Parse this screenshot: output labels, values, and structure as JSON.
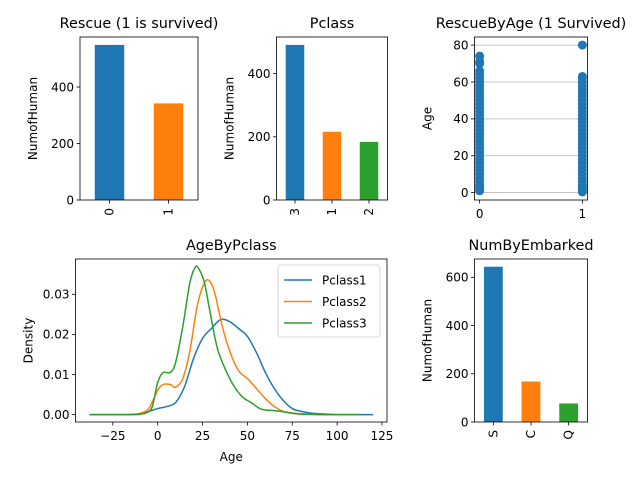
{
  "chart_data": [
    {
      "id": "rescue",
      "type": "bar",
      "title": "Rescue (1 is survived)",
      "xlabel": "",
      "ylabel": "NumofHuman",
      "categories": [
        "0",
        "1"
      ],
      "values": [
        549,
        342
      ],
      "colors": [
        "#1f77b4",
        "#ff7f0e"
      ],
      "ylim": [
        0,
        577
      ],
      "yticks": [
        0,
        200,
        400
      ],
      "tick_rotation": "vertical"
    },
    {
      "id": "pclass",
      "type": "bar",
      "title": "Pclass",
      "xlabel": "",
      "ylabel": "NumofHuman",
      "categories": [
        "3",
        "1",
        "2"
      ],
      "values": [
        491,
        216,
        184
      ],
      "colors": [
        "#1f77b4",
        "#ff7f0e",
        "#2ca02c"
      ],
      "ylim": [
        0,
        516
      ],
      "yticks": [
        0,
        200,
        400
      ],
      "tick_rotation": "vertical"
    },
    {
      "id": "rescuebyage",
      "type": "scatter",
      "title": "RescueByAge (1 Survived)",
      "xlabel": "",
      "ylabel": "Age",
      "xlim": [
        -0.05,
        1.05
      ],
      "ylim": [
        -4,
        84.4
      ],
      "xticks": [
        0,
        1
      ],
      "yticks": [
        0,
        20,
        40,
        60,
        80
      ],
      "grid": "y",
      "color": "#1f77b4",
      "series": [
        {
          "x": 0,
          "y": [
            1,
            2,
            3,
            4,
            6,
            8,
            10,
            12,
            14,
            16,
            18,
            20,
            22,
            24,
            26,
            28,
            30,
            32,
            34,
            36,
            38,
            40,
            42,
            44,
            46,
            48,
            50,
            52,
            54,
            56,
            58,
            60,
            62,
            64,
            66,
            70,
            71,
            74
          ]
        },
        {
          "x": 1,
          "y": [
            0.4,
            1,
            2,
            3,
            4,
            6,
            8,
            10,
            12,
            14,
            16,
            18,
            20,
            22,
            24,
            26,
            28,
            30,
            32,
            34,
            36,
            38,
            40,
            42,
            44,
            46,
            48,
            50,
            52,
            54,
            56,
            58,
            60,
            62,
            63,
            80
          ]
        }
      ]
    },
    {
      "id": "agebypclass",
      "type": "line",
      "title": "AgeByPclass",
      "xlabel": "Age",
      "ylabel": "Density",
      "xlim": [
        -45.8,
        127.8
      ],
      "ylim": [
        -0.00185,
        0.0388
      ],
      "xticks": [
        -25,
        0,
        25,
        50,
        75,
        100,
        125
      ],
      "yticks": [
        0.0,
        0.01,
        0.02,
        0.03
      ],
      "ytick_labels": [
        "0.00",
        "0.01",
        "0.02",
        "0.03"
      ],
      "legend": "upper right",
      "series": [
        {
          "name": "Pclass1",
          "color": "#1f77b4",
          "x": [
            -38,
            -20,
            -10,
            -5,
            0,
            5,
            10,
            15,
            20,
            25,
            30,
            35,
            40,
            45,
            50,
            55,
            60,
            65,
            70,
            75,
            80,
            85,
            90,
            100,
            110,
            120
          ],
          "y": [
            0,
            0,
            0.0002,
            0.0008,
            0.0015,
            0.002,
            0.003,
            0.007,
            0.014,
            0.019,
            0.0215,
            0.0237,
            0.0232,
            0.0215,
            0.0195,
            0.0155,
            0.0105,
            0.0065,
            0.0035,
            0.0015,
            0.0008,
            0.0004,
            0.0002,
            0,
            0,
            0
          ]
        },
        {
          "name": "Pclass2",
          "color": "#ff7f0e",
          "x": [
            -38,
            -15,
            -10,
            -5,
            0,
            3,
            7,
            10,
            14,
            18,
            22,
            26,
            29,
            32,
            36,
            40,
            45,
            50,
            55,
            60,
            65,
            70,
            75,
            80,
            90,
            100,
            112
          ],
          "y": [
            0,
            0,
            0.0003,
            0.0015,
            0.006,
            0.0075,
            0.0075,
            0.0068,
            0.009,
            0.016,
            0.027,
            0.0328,
            0.0333,
            0.03,
            0.022,
            0.016,
            0.011,
            0.009,
            0.0065,
            0.004,
            0.002,
            0.0008,
            0.0004,
            0.0002,
            0,
            0,
            0
          ]
        },
        {
          "name": "Pclass3",
          "color": "#2ca02c",
          "x": [
            -38,
            -15,
            -10,
            -6,
            -3,
            0,
            3,
            7,
            10,
            14,
            18,
            21,
            23,
            26,
            29,
            33,
            37,
            42,
            47,
            52,
            57,
            61,
            65,
            70,
            75,
            80,
            90,
            100,
            112
          ],
          "y": [
            0,
            0,
            0.0001,
            0.0005,
            0.002,
            0.008,
            0.0105,
            0.0105,
            0.013,
            0.022,
            0.033,
            0.0368,
            0.0363,
            0.033,
            0.026,
            0.017,
            0.012,
            0.0075,
            0.0045,
            0.003,
            0.0015,
            0.0011,
            0.001,
            0.0007,
            0.0003,
            0.0001,
            0,
            0,
            0
          ]
        }
      ]
    },
    {
      "id": "numbyembarked",
      "type": "bar",
      "title": "NumByEmbarked",
      "xlabel": "",
      "ylabel": "NumofHuman",
      "categories": [
        "S",
        "C",
        "Q"
      ],
      "values": [
        644,
        168,
        77
      ],
      "colors": [
        "#1f77b4",
        "#ff7f0e",
        "#2ca02c"
      ],
      "ylim": [
        0,
        676
      ],
      "yticks": [
        0,
        200,
        400,
        600
      ],
      "tick_rotation": "vertical"
    }
  ]
}
